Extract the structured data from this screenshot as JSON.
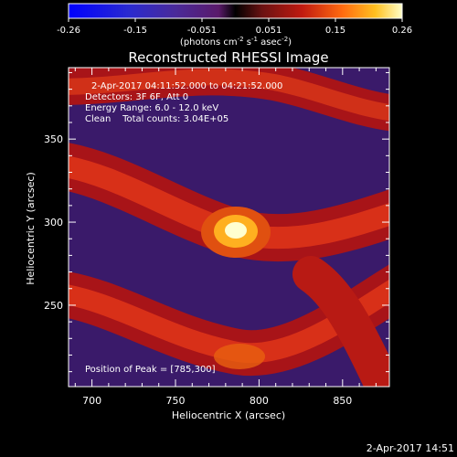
{
  "colorbar": {
    "ticks": [
      "-0.26",
      "-0.15",
      "-0.051",
      "0.051",
      "0.15",
      "0.26"
    ],
    "units_pre": "(photons cm",
    "units_sup1": "-2",
    "units_mid1": " s",
    "units_sup2": "-1",
    "units_mid2": " asec",
    "units_sup3": "-2",
    "units_post": ")",
    "range": [
      -0.26,
      0.26
    ]
  },
  "chart_data": {
    "type": "heatmap",
    "title": "Reconstructed RHESSI Image",
    "xlabel": "Heliocentric X (arcsec)",
    "ylabel": "Heliocentric Y (arcsec)",
    "xlim": [
      686,
      878
    ],
    "ylim": [
      201,
      393
    ],
    "x_ticks": [
      700,
      750,
      800,
      850
    ],
    "y_ticks": [
      250,
      300,
      350
    ],
    "peak": {
      "x": 785,
      "y": 300
    },
    "annotations": [
      "2-Apr-2017 04:11:52.000 to 04:21:52.000",
      "Detectors: 3F 6F, Att 0",
      "Energy Range: 6.0 - 12.0 keV",
      "Clean    Total counts: 3.04E+05",
      "Position of Peak = [785,300]"
    ]
  },
  "footer": {
    "timestamp": "2-Apr-2017 14:51"
  }
}
